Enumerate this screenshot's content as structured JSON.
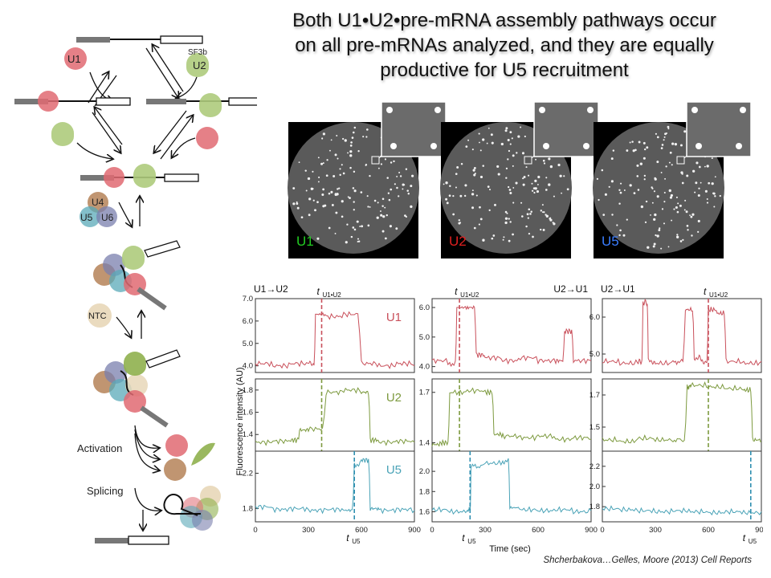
{
  "title": {
    "lines": [
      "Both U1•U2•pre-mRNA assembly pathways occur",
      "on all pre-mRNAs analyzed, and they are equally",
      "productive for U5 recruitment"
    ]
  },
  "citation": "Shcherbakova…Gelles, Moore (2013) Cell Reports",
  "scheme": {
    "labels": {
      "u1": "U1",
      "u2": "U2",
      "sf3b": "SF3b",
      "u4": "U4",
      "u5": "U5",
      "u6": "U6",
      "ntc": "NTC",
      "activation": "Activation",
      "splicing": "Splicing"
    },
    "colors": {
      "u1": "#e06a72",
      "u2": "#8fb04e",
      "u4": "#b07a4e",
      "u5": "#5aa9b8",
      "u6": "#7a7fae",
      "ntc": "#e8d7b8"
    }
  },
  "micrographs": [
    {
      "label": "U1",
      "color": "#22cc22"
    },
    {
      "label": "U2",
      "color": "#e02020"
    },
    {
      "label": "U5",
      "color": "#3a7dff"
    }
  ],
  "chart_data": [
    {
      "type": "line",
      "panel": "U1→U2",
      "row": "U1",
      "series_name": "U1",
      "color": "#c9505b",
      "ylim": [
        3.7,
        7.0
      ],
      "yticks": [
        4.0,
        5.0,
        6.0,
        7.0
      ],
      "x": [
        0,
        100,
        200,
        300,
        340,
        400,
        500,
        600,
        700,
        800,
        900
      ],
      "values": [
        4.1,
        4.0,
        4.1,
        4.1,
        6.3,
        6.2,
        6.3,
        4.1,
        4.0,
        4.1,
        4.0
      ],
      "dash_x": 375
    },
    {
      "type": "line",
      "panel": "U1→U2",
      "row": "U2",
      "series_name": "U2",
      "color": "#7d9a3f",
      "ylim": [
        1.25,
        1.9
      ],
      "yticks": [
        1.4,
        1.6,
        1.8
      ],
      "x": [
        0,
        100,
        200,
        250,
        300,
        400,
        500,
        600,
        650,
        700,
        800,
        900
      ],
      "values": [
        1.33,
        1.34,
        1.35,
        1.44,
        1.45,
        1.78,
        1.8,
        1.78,
        1.35,
        1.33,
        1.34,
        1.33
      ],
      "dash_x": 375
    },
    {
      "type": "line",
      "panel": "U1→U2",
      "row": "U5",
      "series_name": "U5",
      "color": "#4aa3b7",
      "ylim": [
        1.65,
        2.45
      ],
      "yticks": [
        1.8,
        2.2
      ],
      "x": [
        0,
        100,
        200,
        300,
        400,
        500,
        560,
        600,
        650,
        700,
        800,
        900
      ],
      "values": [
        1.82,
        1.79,
        1.8,
        1.78,
        1.79,
        1.78,
        2.3,
        2.35,
        1.8,
        1.78,
        1.79,
        1.78
      ],
      "dash_x": 560
    },
    {
      "type": "line",
      "panel": "U2→U1",
      "row": "U1",
      "series_name": "",
      "color": "#c9505b",
      "ylim": [
        3.8,
        6.3
      ],
      "yticks": [
        4.0,
        5.0,
        6.0
      ],
      "x": [
        0,
        100,
        140,
        200,
        250,
        300,
        400,
        500,
        600,
        700,
        750,
        800,
        900
      ],
      "values": [
        4.2,
        4.1,
        6.0,
        6.0,
        4.4,
        4.3,
        4.2,
        4.3,
        4.2,
        4.2,
        5.2,
        4.2,
        4.2
      ],
      "dash_x": 155
    },
    {
      "type": "line",
      "panel": "U2→U1",
      "row": "U2",
      "series_name": "",
      "color": "#7d9a3f",
      "ylim": [
        1.35,
        1.78
      ],
      "yticks": [
        1.4,
        1.7
      ],
      "x": [
        0,
        50,
        100,
        200,
        300,
        350,
        400,
        500,
        600,
        700,
        800,
        900
      ],
      "values": [
        1.39,
        1.4,
        1.7,
        1.71,
        1.7,
        1.45,
        1.44,
        1.43,
        1.44,
        1.42,
        1.43,
        1.42
      ],
      "dash_x": 155
    },
    {
      "type": "line",
      "panel": "U2→U1",
      "row": "U5",
      "series_name": "",
      "color": "#4aa3b7",
      "ylim": [
        1.5,
        2.2
      ],
      "yticks": [
        1.6,
        1.8,
        2.0
      ],
      "x": [
        0,
        100,
        200,
        220,
        300,
        400,
        440,
        500,
        600,
        700,
        800,
        900
      ],
      "values": [
        1.62,
        1.6,
        1.62,
        2.05,
        2.08,
        2.1,
        1.64,
        1.62,
        1.61,
        1.62,
        1.6,
        1.61
      ],
      "dash_x": 215
    },
    {
      "type": "line",
      "panel": "U2→U1",
      "row": "U1",
      "series_name": "",
      "color": "#c9505b",
      "ylim": [
        4.5,
        6.5
      ],
      "yticks": [
        5.0,
        6.0
      ],
      "x": [
        0,
        100,
        200,
        230,
        260,
        300,
        400,
        470,
        520,
        560,
        600,
        650,
        700,
        800,
        900
      ],
      "values": [
        4.8,
        4.75,
        4.8,
        6.4,
        4.8,
        4.75,
        4.8,
        6.2,
        4.9,
        4.8,
        6.2,
        6.1,
        4.8,
        4.75,
        4.8
      ],
      "dash_x": 600
    },
    {
      "type": "line",
      "panel": "U2→U1",
      "row": "U2",
      "series_name": "",
      "color": "#7d9a3f",
      "ylim": [
        1.35,
        1.8
      ],
      "yticks": [
        1.5,
        1.7
      ],
      "x": [
        0,
        100,
        200,
        300,
        400,
        480,
        500,
        600,
        700,
        800,
        850,
        900
      ],
      "values": [
        1.42,
        1.41,
        1.43,
        1.42,
        1.42,
        1.75,
        1.76,
        1.75,
        1.74,
        1.73,
        1.42,
        1.41
      ],
      "dash_x": 600
    },
    {
      "type": "line",
      "panel": "U2→U1",
      "row": "U5",
      "series_name": "",
      "color": "#4aa3b7",
      "ylim": [
        1.65,
        2.35
      ],
      "yticks": [
        1.8,
        2.0,
        2.2
      ],
      "x": [
        0,
        100,
        200,
        300,
        400,
        500,
        600,
        700,
        800,
        900
      ],
      "values": [
        1.78,
        1.77,
        1.76,
        1.75,
        1.76,
        1.75,
        1.74,
        1.75,
        1.74,
        1.75
      ],
      "dash_x": 840
    }
  ],
  "chart_text": {
    "ylabel": "Fluorescence intensity (AU)",
    "xlabel": "Time (sec)",
    "xticks": [
      0,
      300,
      600,
      900
    ],
    "t_main": "t",
    "t_sub_u1u2": "U1•U2",
    "t_sub_u5": "U5",
    "headers": [
      "U1→U2",
      "U2→U1",
      "U2→U1"
    ]
  }
}
